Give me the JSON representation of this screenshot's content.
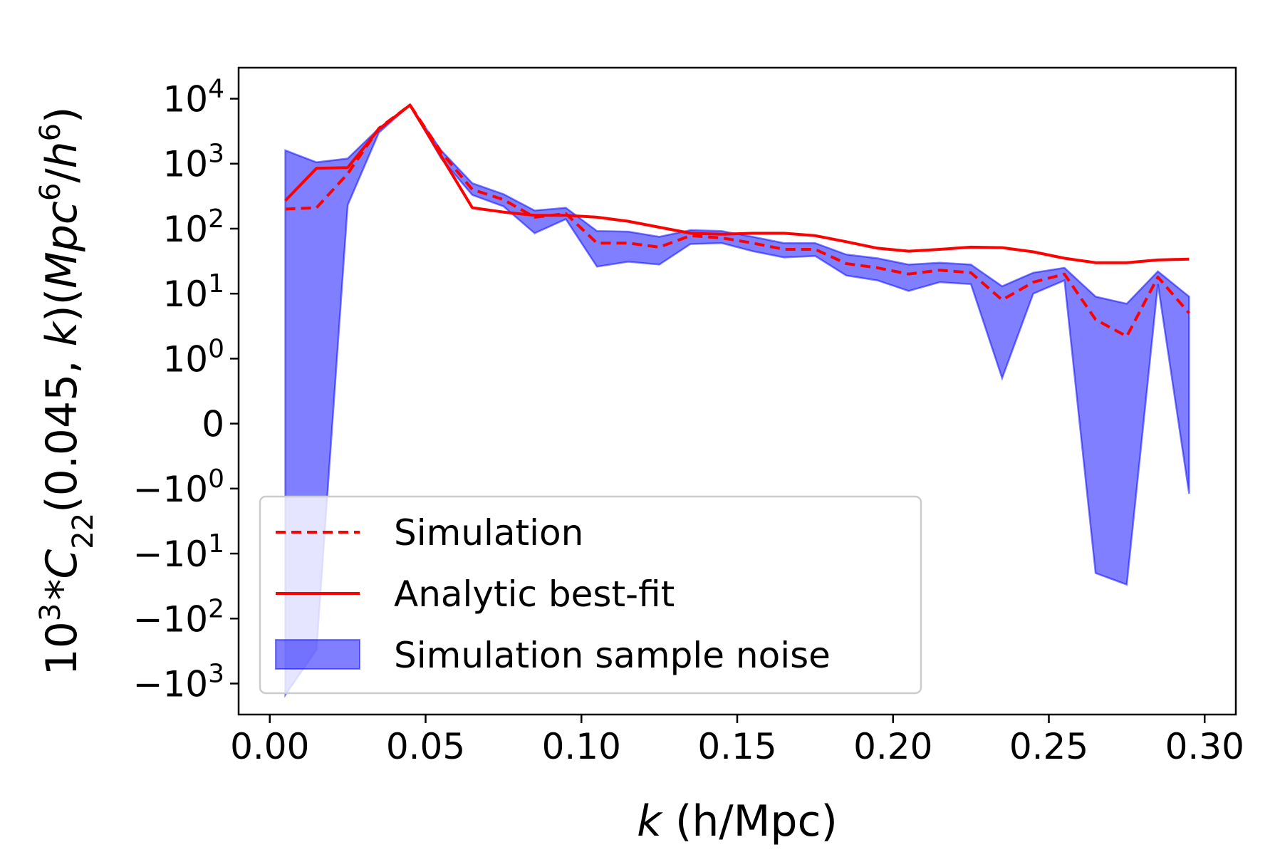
{
  "chart_data": {
    "type": "line",
    "xlabel": "k (h/Mpc)",
    "ylabel": "10^3 * C22(0.045, k)(Mpc^6/h^6)",
    "yscale": "symlog",
    "linthresh": 1,
    "xlim": [
      -0.01,
      0.31
    ],
    "ylim": [
      -3000,
      30000
    ],
    "grid": false,
    "legend_position": "lower-left",
    "x_ticks": [
      0.0,
      0.05,
      0.1,
      0.15,
      0.2,
      0.25,
      0.3
    ],
    "x_tick_labels": [
      "0.00",
      "0.05",
      "0.10",
      "0.15",
      "0.20",
      "0.25",
      "0.30"
    ],
    "y_ticks": [
      {
        "value": 10000,
        "sign": "",
        "exp": "4"
      },
      {
        "value": 1000,
        "sign": "",
        "exp": "3"
      },
      {
        "value": 100,
        "sign": "",
        "exp": "2"
      },
      {
        "value": 10,
        "sign": "",
        "exp": "1"
      },
      {
        "value": 1,
        "sign": "",
        "exp": "0"
      },
      {
        "value": 0,
        "sign": "",
        "exp": ""
      },
      {
        "value": -1,
        "sign": "−",
        "exp": "0"
      },
      {
        "value": -10,
        "sign": "−",
        "exp": "1"
      },
      {
        "value": -100,
        "sign": "−",
        "exp": "2"
      },
      {
        "value": -1000,
        "sign": "−",
        "exp": "3"
      }
    ],
    "x": [
      0.005,
      0.015,
      0.025,
      0.035,
      0.045,
      0.055,
      0.065,
      0.075,
      0.085,
      0.095,
      0.105,
      0.115,
      0.125,
      0.135,
      0.145,
      0.155,
      0.165,
      0.175,
      0.185,
      0.195,
      0.205,
      0.215,
      0.225,
      0.235,
      0.245,
      0.255,
      0.265,
      0.275,
      0.285,
      0.295
    ],
    "series": [
      {
        "name": "Simulation",
        "style": "dashed",
        "color": "#ff0000",
        "values": [
          200,
          210,
          700,
          3500,
          8000,
          1500,
          400,
          280,
          150,
          170,
          60,
          60,
          52,
          78,
          72,
          60,
          48,
          48,
          29,
          25,
          20,
          23,
          21,
          8,
          15,
          20,
          4,
          2.2,
          18,
          5
        ]
      },
      {
        "name": "Analytic best-fit",
        "style": "solid",
        "color": "#ff0000",
        "values": [
          270,
          850,
          870,
          3400,
          8000,
          1300,
          210,
          180,
          160,
          160,
          150,
          130,
          105,
          85,
          82,
          85,
          85,
          78,
          63,
          50,
          45,
          48,
          52,
          51,
          44,
          35,
          30,
          30,
          33,
          34
        ]
      },
      {
        "name": "Simulation sample noise",
        "style": "band",
        "color": "#0000ff",
        "lower": [
          -1500,
          -300,
          230,
          3000,
          8000,
          1200,
          330,
          220,
          85,
          140,
          26,
          31,
          28,
          58,
          60,
          45,
          36,
          38,
          19,
          16,
          11,
          15,
          14,
          0.7,
          10,
          16,
          -20,
          -30,
          14,
          -1.2
        ],
        "upper": [
          1600,
          1050,
          1200,
          3500,
          8000,
          1600,
          500,
          340,
          190,
          210,
          92,
          90,
          75,
          95,
          92,
          75,
          60,
          60,
          40,
          35,
          28,
          30,
          28,
          13,
          21,
          25,
          9,
          7,
          22,
          9
        ]
      }
    ]
  }
}
